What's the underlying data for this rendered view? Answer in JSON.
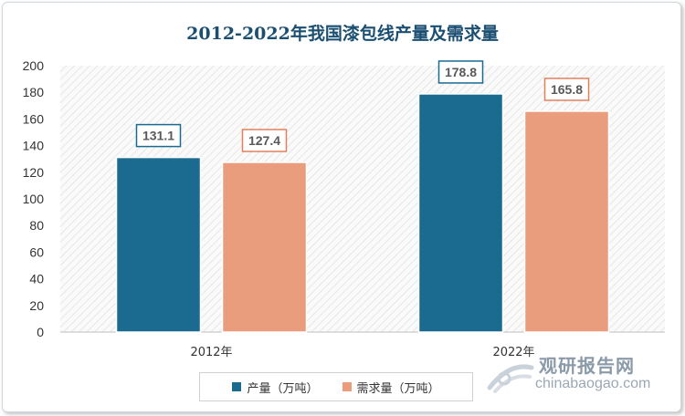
{
  "chart_data": {
    "type": "bar",
    "title": "2012-2022年我国漆包线产量及需求量",
    "categories": [
      "2012年",
      "2022年"
    ],
    "series": [
      {
        "name": "产量（万吨）",
        "values": [
          131.1,
          178.8
        ],
        "color": "#1b6a8f",
        "label_border": "#1b6a8f"
      },
      {
        "name": "需求量（万吨）",
        "values": [
          127.4,
          165.8
        ],
        "color": "#e99d7c",
        "label_border": "#e0805c"
      }
    ],
    "ylim": [
      0,
      200
    ],
    "yticks": [
      0,
      20,
      40,
      60,
      80,
      100,
      120,
      140,
      160,
      180,
      200
    ],
    "xlabel": "",
    "ylabel": "",
    "legend_position": "bottom"
  },
  "watermark": {
    "name": "观研报告网",
    "url": "chinabaogao.com"
  }
}
